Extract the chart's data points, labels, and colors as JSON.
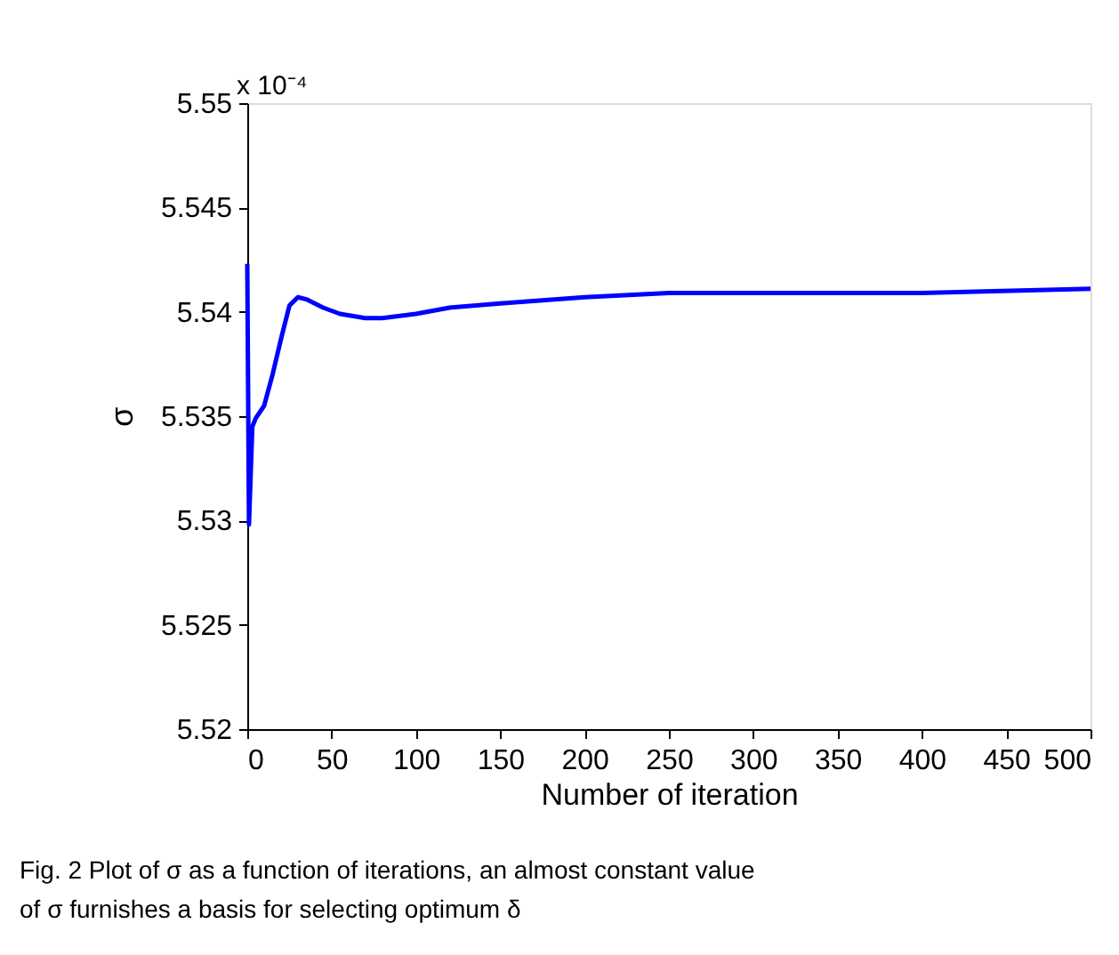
{
  "chart_data": {
    "type": "line",
    "xlabel": "Number of iteration",
    "ylabel": "σ",
    "x": [
      0,
      1,
      3,
      5,
      10,
      15,
      20,
      25,
      30,
      35,
      45,
      55,
      70,
      80,
      100,
      120,
      150,
      200,
      250,
      300,
      400,
      500
    ],
    "series": [
      {
        "color": "#0000ff",
        "values": [
          5.5423,
          5.5298,
          5.5345,
          5.5349,
          5.5355,
          5.537,
          5.5387,
          5.5403,
          5.5407,
          5.5406,
          5.5402,
          5.5399,
          5.5397,
          5.5397,
          5.5399,
          5.5402,
          5.5404,
          5.5407,
          5.5409,
          5.5409,
          5.5409,
          5.5411
        ]
      }
    ],
    "xlim": [
      0,
      500
    ],
    "xticks": [
      0,
      50,
      100,
      150,
      200,
      250,
      300,
      350,
      400,
      450,
      500
    ],
    "ylim": [
      5.52,
      5.55
    ],
    "yticks": [
      5.52,
      5.525,
      5.53,
      5.535,
      5.54,
      5.545,
      5.55
    ],
    "grid": false,
    "annotations": [
      "x 10⁻⁴",
      "Fig. 2  Plot of σ as a function of iterations, an almost constant value of σ furnishes a basis for selecting optimum δ"
    ]
  }
}
